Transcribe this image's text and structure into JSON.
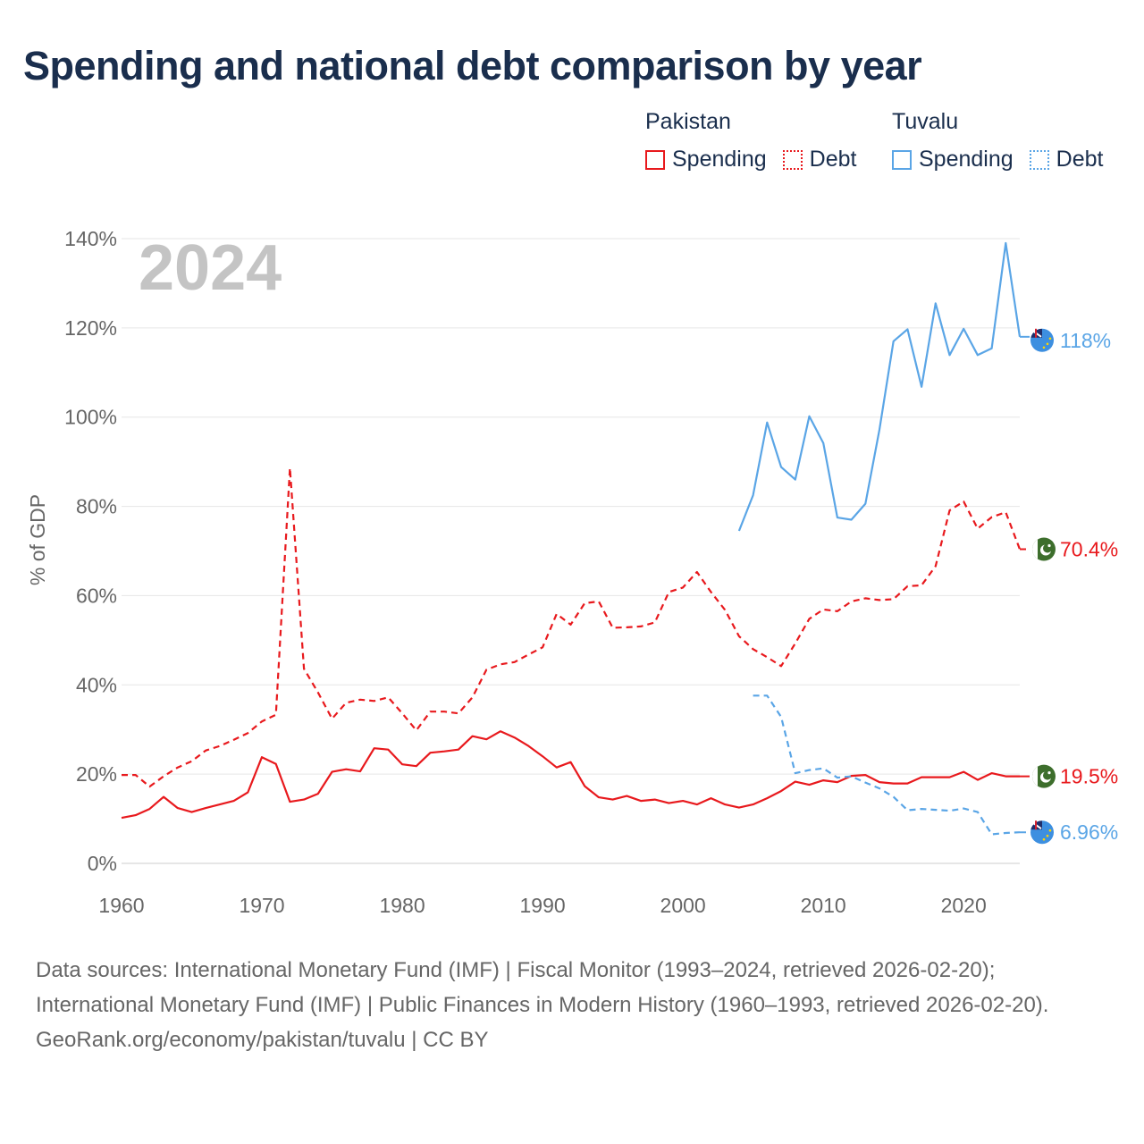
{
  "title": "Spending and national debt comparison by year",
  "legend": [
    {
      "country": "Pakistan",
      "color": "#e8191d",
      "items": [
        {
          "label": "Spending",
          "style": "solid"
        },
        {
          "label": "Debt",
          "style": "dotted"
        }
      ]
    },
    {
      "country": "Tuvalu",
      "color": "#5aa5e6",
      "items": [
        {
          "label": "Spending",
          "style": "solid"
        },
        {
          "label": "Debt",
          "style": "dotted"
        }
      ]
    }
  ],
  "chart_data": {
    "type": "line",
    "year_label": "2024",
    "ylabel": "% of GDP",
    "xlim": [
      1960,
      2024
    ],
    "ylim": [
      0,
      140
    ],
    "x_ticks": [
      "1960",
      "1970",
      "1980",
      "1990",
      "2000",
      "2010",
      "2020"
    ],
    "y_ticks": [
      "0%",
      "20%",
      "40%",
      "60%",
      "80%",
      "100%",
      "120%",
      "140%"
    ],
    "series": [
      {
        "name": "Pakistan Spending",
        "country": "Pakistan",
        "metric": "Spending",
        "color": "#e8191d",
        "dash": "solid",
        "end_label": "19.5%",
        "flag": "pakistan-flag-icon",
        "x": [
          1960,
          1961,
          1962,
          1963,
          1964,
          1965,
          1966,
          1967,
          1968,
          1969,
          1970,
          1971,
          1972,
          1973,
          1974,
          1975,
          1976,
          1977,
          1978,
          1979,
          1980,
          1981,
          1982,
          1983,
          1984,
          1985,
          1986,
          1987,
          1988,
          1989,
          1990,
          1991,
          1992,
          1993,
          1994,
          1995,
          1996,
          1997,
          1998,
          1999,
          2000,
          2001,
          2002,
          2003,
          2004,
          2005,
          2006,
          2007,
          2008,
          2009,
          2010,
          2011,
          2012,
          2013,
          2014,
          2015,
          2016,
          2017,
          2018,
          2019,
          2020,
          2021,
          2022,
          2023,
          2024
        ],
        "values": [
          10.2,
          10.8,
          12.2,
          14.9,
          12.4,
          11.5,
          12.4,
          13.2,
          14.0,
          15.9,
          23.8,
          22.3,
          13.8,
          14.3,
          15.6,
          20.5,
          21.1,
          20.6,
          25.8,
          25.5,
          22.2,
          21.8,
          24.8,
          25.1,
          25.5,
          28.5,
          27.8,
          29.6,
          28.2,
          26.3,
          24.0,
          21.5,
          22.7,
          17.3,
          14.8,
          14.3,
          15.1,
          14.0,
          14.3,
          13.5,
          14.0,
          13.2,
          14.6,
          13.2,
          12.5,
          13.2,
          14.6,
          16.2,
          18.3,
          17.6,
          18.6,
          18.2,
          19.6,
          19.8,
          18.2,
          17.9,
          17.9,
          19.3,
          19.3,
          19.3,
          20.5,
          18.7,
          20.2,
          19.5,
          19.5
        ]
      },
      {
        "name": "Pakistan Debt",
        "country": "Pakistan",
        "metric": "Debt",
        "color": "#e8191d",
        "dash": "dashed",
        "end_label": "70.4%",
        "flag": "pakistan-flag-icon",
        "x": [
          1960,
          1961,
          1962,
          1963,
          1964,
          1965,
          1966,
          1967,
          1968,
          1969,
          1970,
          1971,
          1972,
          1973,
          1974,
          1975,
          1976,
          1977,
          1978,
          1979,
          1980,
          1981,
          1982,
          1983,
          1984,
          1985,
          1986,
          1987,
          1988,
          1989,
          1990,
          1991,
          1992,
          1993,
          1994,
          1995,
          1996,
          1997,
          1998,
          1999,
          2000,
          2001,
          2002,
          2003,
          2004,
          2005,
          2006,
          2007,
          2008,
          2009,
          2010,
          2011,
          2012,
          2013,
          2014,
          2015,
          2016,
          2017,
          2018,
          2019,
          2020,
          2021,
          2022,
          2023,
          2024
        ],
        "values": [
          19.8,
          19.8,
          17.2,
          19.5,
          21.5,
          22.9,
          25.3,
          26.3,
          27.7,
          29.2,
          31.8,
          33.3,
          88.6,
          43.6,
          38.3,
          32.4,
          36.0,
          36.7,
          36.4,
          37.2,
          33.6,
          29.8,
          34.0,
          34.0,
          33.6,
          37.2,
          43.4,
          44.6,
          45.1,
          46.8,
          48.4,
          55.9,
          53.5,
          58.3,
          58.7,
          52.8,
          52.9,
          53.1,
          54.0,
          60.8,
          61.8,
          65.3,
          60.8,
          56.8,
          50.9,
          48.0,
          46.2,
          44.2,
          49.3,
          54.8,
          56.9,
          56.5,
          58.7,
          59.4,
          59.0,
          59.2,
          62.1,
          62.3,
          66.6,
          79.1,
          81.1,
          75.0,
          77.6,
          78.7,
          70.4
        ]
      },
      {
        "name": "Tuvalu Spending",
        "country": "Tuvalu",
        "metric": "Spending",
        "color": "#5aa5e6",
        "dash": "solid",
        "end_label": "118%",
        "flag": "tuvalu-flag-icon",
        "x": [
          2004,
          2005,
          2006,
          2007,
          2008,
          2009,
          2010,
          2011,
          2012,
          2013,
          2014,
          2015,
          2016,
          2017,
          2018,
          2019,
          2020,
          2021,
          2022,
          2023,
          2024
        ],
        "values": [
          74.5,
          82.5,
          98.8,
          88.8,
          86.0,
          100.2,
          94.2,
          77.5,
          77.0,
          80.6,
          97.2,
          117.0,
          119.7,
          106.8,
          125.5,
          113.9,
          119.8,
          113.9,
          115.4,
          139.0,
          118.0
        ]
      },
      {
        "name": "Tuvalu Debt",
        "country": "Tuvalu",
        "metric": "Debt",
        "color": "#5aa5e6",
        "dash": "dashed",
        "end_label": "6.96%",
        "flag": "tuvalu-flag-icon",
        "x": [
          2005,
          2006,
          2007,
          2008,
          2009,
          2010,
          2011,
          2012,
          2013,
          2014,
          2015,
          2016,
          2017,
          2018,
          2019,
          2020,
          2021,
          2022,
          2023,
          2024
        ],
        "values": [
          37.6,
          37.6,
          32.8,
          20.2,
          20.9,
          21.3,
          19.2,
          19.5,
          18.1,
          16.8,
          14.9,
          11.9,
          12.2,
          12.0,
          11.8,
          12.3,
          11.5,
          6.5,
          6.8,
          6.96
        ]
      }
    ]
  },
  "sources": "Data sources: International Monetary Fund (IMF) | Fiscal Monitor (1993–2024, retrieved 2026-02-20); International Monetary Fund (IMF) | Public Finances in Modern History (1960–1993, retrieved 2026-02-20).",
  "attribution": "GeoRank.org/economy/pakistan/tuvalu | CC BY"
}
